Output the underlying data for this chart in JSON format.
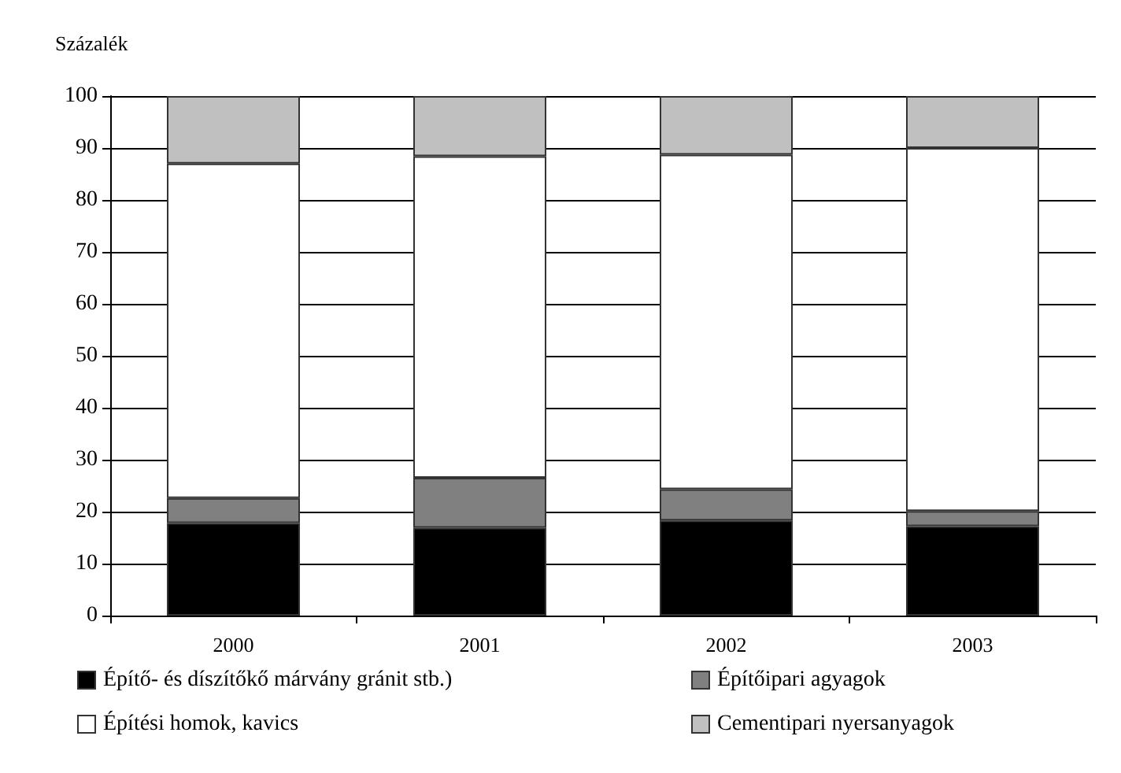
{
  "chart_data": {
    "type": "bar",
    "stacked": true,
    "ylabel": "Százalék",
    "categories": [
      "2000",
      "2001",
      "2002",
      "2003"
    ],
    "series": [
      {
        "name": "Építő- és díszítőkő márvány gránit stb.)",
        "color": "#000000",
        "values": [
          17.8,
          16.9,
          18.3,
          17.2
        ]
      },
      {
        "name": "Építőipari agyagok",
        "color": "#808080",
        "values": [
          4.8,
          9.6,
          6.0,
          2.9
        ]
      },
      {
        "name": "Építési homok, kavics",
        "color": "#ffffff",
        "values": [
          64.4,
          61.9,
          64.4,
          69.9
        ]
      },
      {
        "name": "Cementipari nyersanyagok",
        "color": "#c0c0c0",
        "values": [
          13.0,
          11.6,
          11.3,
          10.0
        ]
      }
    ],
    "ylim": [
      0,
      100
    ],
    "yticks": [
      0,
      10,
      20,
      30,
      40,
      50,
      60,
      70,
      80,
      90,
      100
    ],
    "grid": "y",
    "legend": "bottom"
  }
}
